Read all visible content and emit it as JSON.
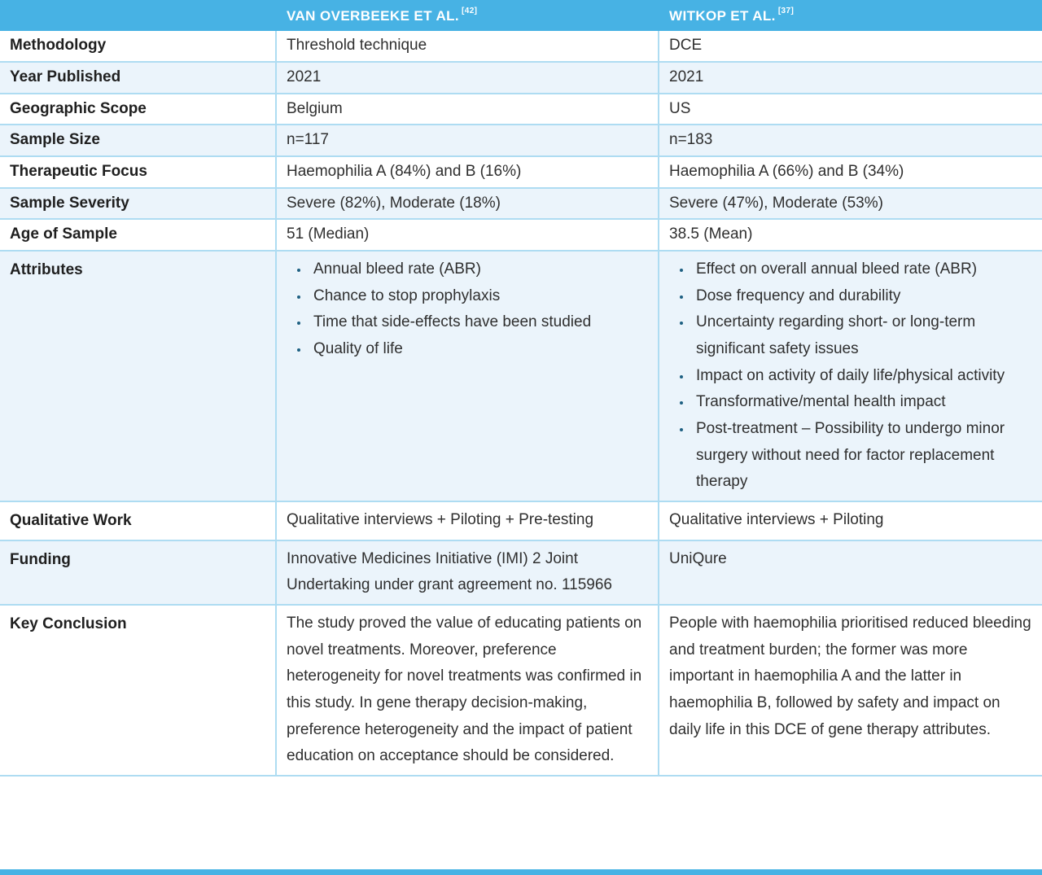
{
  "colors": {
    "header_blue": "#47b2e4",
    "row_tint": "#ebf4fb",
    "grid_line": "#aedcf2",
    "bullet": "#1e6082",
    "text": "#2f2f2f"
  },
  "table": {
    "columns": [
      {
        "name": "VAN OVERBEEKE ET AL.",
        "ref": "[42]"
      },
      {
        "name": "WITKOP ET AL.",
        "ref": "[37]"
      }
    ],
    "rows": {
      "methodology": {
        "label": "Methodology",
        "col1": "Threshold technique",
        "col2": "DCE"
      },
      "year_published": {
        "label": "Year Published",
        "col1": "2021",
        "col2": "2021"
      },
      "geographic_scope": {
        "label": "Geographic Scope",
        "col1": "Belgium",
        "col2": "US"
      },
      "sample_size": {
        "label": "Sample Size",
        "col1": "n=117",
        "col2": "n=183"
      },
      "therapeutic_focus": {
        "label": "Therapeutic Focus",
        "col1": "Haemophilia A (84%) and B (16%)",
        "col2": "Haemophilia A (66%) and B (34%)"
      },
      "sample_severity": {
        "label": "Sample Severity",
        "col1": "Severe (82%), Moderate (18%)",
        "col2": "Severe (47%), Moderate (53%)"
      },
      "age_of_sample": {
        "label": "Age of Sample",
        "col1": "51 (Median)",
        "col2": "38.5 (Mean)"
      },
      "attributes": {
        "label": "Attributes",
        "col1_items": [
          "Annual bleed rate (ABR)",
          "Chance to stop prophylaxis",
          "Time that side-effects have been studied",
          "Quality of life"
        ],
        "col2_items": [
          "Effect on overall annual bleed rate (ABR)",
          "Dose frequency and durability",
          "Uncertainty regarding short- or long-term significant safety issues",
          "Impact on activity of daily life/physical activity",
          "Transformative/mental health impact",
          "Post-treatment – Possibility to undergo minor surgery without need for factor replacement therapy"
        ]
      },
      "qualitative_work": {
        "label": "Qualitative Work",
        "col1": "Qualitative interviews + Piloting + Pre-testing",
        "col2": "Qualitative interviews + Piloting"
      },
      "funding": {
        "label": "Funding",
        "col1": "Innovative Medicines Initiative (IMI) 2 Joint Undertaking under grant agreement no. 115966",
        "col2": "UniQure"
      },
      "key_conclusion": {
        "label": "Key Conclusion",
        "col1": "The study proved the value of educating patients on novel treatments. Moreover, preference heterogeneity for novel treatments was confirmed in this study. In gene therapy decision-making, preference heterogeneity and the impact of patient education on acceptance should be considered.",
        "col2": "People with haemophilia prioritised reduced bleeding and treatment burden; the former was more important in haemophilia A and the latter in haemophilia B, followed by safety and impact on daily life in this DCE of gene therapy attributes."
      }
    }
  }
}
